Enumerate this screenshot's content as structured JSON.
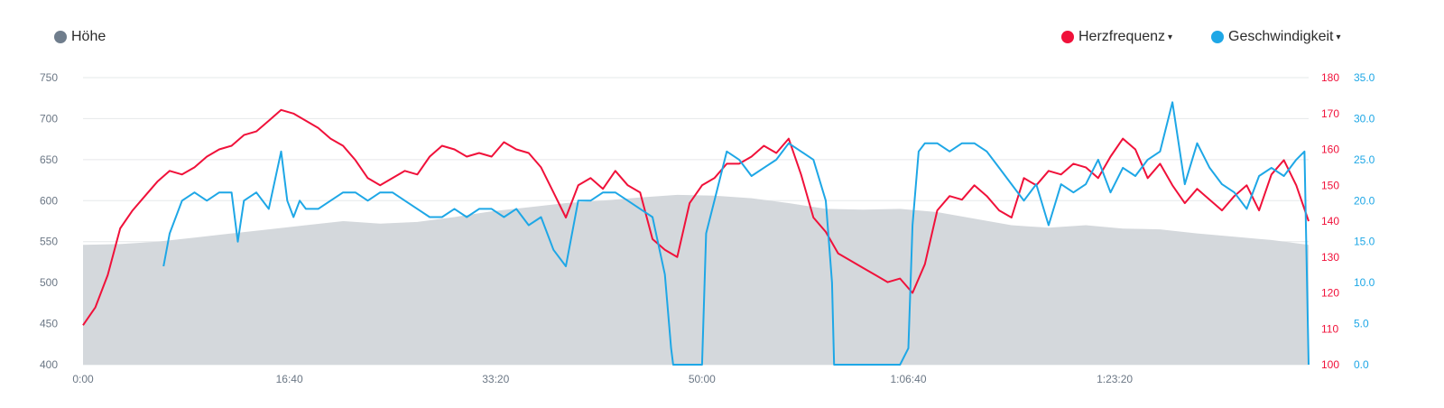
{
  "legend": {
    "elevation": {
      "label": "Höhe",
      "color": "#6f7d8c"
    },
    "heart_rate": {
      "label": "Herzfrequenz",
      "color": "#f0113a",
      "caret": "▾"
    },
    "speed": {
      "label": "Geschwindigkeit",
      "color": "#1ea7e6",
      "caret": "▾"
    }
  },
  "chart_data": {
    "type": "line",
    "x_unit": "elapsed time (h:mm:ss)",
    "xlim": [
      "0:00",
      "1:39:00"
    ],
    "x_ticks": [
      "0:00",
      "16:40",
      "33:20",
      "50:00",
      "1:06:40",
      "1:23:20"
    ],
    "grid": true,
    "legend_position": "top",
    "axes": {
      "left": {
        "ylim": [
          400,
          750
        ],
        "ticks": [
          "750",
          "700",
          "650",
          "600",
          "550",
          "500",
          "450",
          "400"
        ],
        "tick_color": "#6b7785"
      },
      "right_hr": {
        "ylim": [
          100,
          180
        ],
        "ticks": [
          "180",
          "170",
          "160",
          "150",
          "140",
          "130",
          "120",
          "110",
          "100"
        ],
        "tick_color": "#f0113a"
      },
      "right_speed": {
        "ylim": [
          0,
          35
        ],
        "ticks": [
          "35.0",
          "30.0",
          "25.0",
          "20.0",
          "15.0",
          "10.0",
          "5.0",
          "0.0"
        ],
        "tick_color": "#1ea7e6"
      }
    },
    "series": [
      {
        "name": "Höhe",
        "type": "area",
        "axis": "left",
        "color": "#d4d8dc",
        "x": [
          "0:00",
          "3:00",
          "6:00",
          "9:00",
          "12:00",
          "15:00",
          "18:00",
          "21:00",
          "24:00",
          "27:00",
          "30:00",
          "33:00",
          "36:00",
          "39:00",
          "42:00",
          "45:00",
          "48:00",
          "51:00",
          "54:00",
          "57:00",
          "60:00",
          "63:00",
          "66:00",
          "69:00",
          "72:00",
          "75:00",
          "78:00",
          "81:00",
          "84:00",
          "87:00",
          "90:00",
          "93:00",
          "96:00",
          "99:00"
        ],
        "values": [
          546,
          547,
          550,
          555,
          560,
          565,
          570,
          575,
          572,
          574,
          580,
          587,
          592,
          597,
          600,
          604,
          607,
          606,
          603,
          597,
          590,
          589,
          590,
          586,
          578,
          570,
          567,
          570,
          566,
          565,
          560,
          556,
          552,
          546
        ]
      },
      {
        "name": "Herzfrequenz",
        "type": "line",
        "axis": "right_hr",
        "color": "#f0113a",
        "x": [
          "0:00",
          "1:00",
          "2:00",
          "3:00",
          "4:00",
          "5:00",
          "6:00",
          "7:00",
          "8:00",
          "9:00",
          "10:00",
          "11:00",
          "12:00",
          "13:00",
          "14:00",
          "15:00",
          "16:00",
          "17:00",
          "18:00",
          "19:00",
          "20:00",
          "21:00",
          "22:00",
          "23:00",
          "24:00",
          "25:00",
          "26:00",
          "27:00",
          "28:00",
          "29:00",
          "30:00",
          "31:00",
          "32:00",
          "33:00",
          "34:00",
          "35:00",
          "36:00",
          "37:00",
          "38:00",
          "39:00",
          "40:00",
          "41:00",
          "42:00",
          "43:00",
          "44:00",
          "45:00",
          "46:00",
          "47:00",
          "48:00",
          "49:00",
          "50:00",
          "51:00",
          "52:00",
          "53:00",
          "54:00",
          "55:00",
          "56:00",
          "57:00",
          "58:00",
          "59:00",
          "60:00",
          "61:00",
          "62:00",
          "63:00",
          "64:00",
          "65:00",
          "66:00",
          "67:00",
          "68:00",
          "69:00",
          "70:00",
          "71:00",
          "72:00",
          "73:00",
          "74:00",
          "75:00",
          "76:00",
          "77:00",
          "78:00",
          "79:00",
          "80:00",
          "81:00",
          "82:00",
          "83:00",
          "84:00",
          "85:00",
          "86:00",
          "87:00",
          "88:00",
          "89:00",
          "90:00",
          "91:00",
          "92:00",
          "93:00",
          "94:00",
          "95:00",
          "96:00",
          "97:00",
          "98:00",
          "99:00"
        ],
        "values": [
          111,
          116,
          125,
          138,
          143,
          147,
          151,
          154,
          153,
          155,
          158,
          160,
          161,
          164,
          165,
          168,
          171,
          170,
          168,
          166,
          163,
          161,
          157,
          152,
          150,
          152,
          154,
          153,
          158,
          161,
          160,
          158,
          159,
          158,
          162,
          160,
          159,
          155,
          148,
          141,
          150,
          152,
          149,
          154,
          150,
          148,
          135,
          132,
          130,
          145,
          150,
          152,
          156,
          156,
          158,
          161,
          159,
          163,
          153,
          141,
          137,
          131,
          129,
          127,
          125,
          123,
          124,
          120,
          128,
          143,
          147,
          146,
          150,
          147,
          143,
          141,
          152,
          150,
          154,
          153,
          156,
          155,
          152,
          158,
          163,
          160,
          152,
          156,
          150,
          145,
          149,
          146,
          143,
          147,
          150,
          143,
          153,
          157,
          150,
          140
        ]
      },
      {
        "name": "Geschwindigkeit",
        "type": "line",
        "axis": "right_speed",
        "color": "#1ea7e6",
        "x": [
          "6:30",
          "7:00",
          "8:00",
          "9:00",
          "10:00",
          "11:00",
          "12:00",
          "12:30",
          "13:00",
          "14:00",
          "15:00",
          "16:00",
          "16:30",
          "17:00",
          "17:30",
          "18:00",
          "19:00",
          "20:00",
          "21:00",
          "22:00",
          "23:00",
          "24:00",
          "25:00",
          "26:00",
          "27:00",
          "28:00",
          "29:00",
          "30:00",
          "31:00",
          "32:00",
          "33:00",
          "34:00",
          "35:00",
          "36:00",
          "37:00",
          "38:00",
          "39:00",
          "40:00",
          "41:00",
          "42:00",
          "43:00",
          "44:00",
          "45:00",
          "46:00",
          "47:00",
          "47:30",
          "47:40",
          "50:00",
          "50:20",
          "51:00",
          "52:00",
          "53:00",
          "54:00",
          "55:00",
          "56:00",
          "57:00",
          "58:00",
          "59:00",
          "60:00",
          "60:30",
          "60:40",
          "66:00",
          "66:40",
          "67:00",
          "67:30",
          "68:00",
          "69:00",
          "70:00",
          "71:00",
          "72:00",
          "73:00",
          "74:00",
          "75:00",
          "76:00",
          "77:00",
          "78:00",
          "79:00",
          "80:00",
          "81:00",
          "82:00",
          "83:00",
          "84:00",
          "85:00",
          "86:00",
          "87:00",
          "88:00",
          "89:00",
          "90:00",
          "91:00",
          "92:00",
          "93:00",
          "94:00",
          "95:00",
          "96:00",
          "97:00",
          "98:00",
          "98:40",
          "99:00"
        ],
        "values": [
          12,
          16,
          20,
          21,
          20,
          21,
          21,
          15,
          20,
          21,
          19,
          26,
          20,
          18,
          20,
          19,
          19,
          20,
          21,
          21,
          20,
          21,
          21,
          20,
          19,
          18,
          18,
          19,
          18,
          19,
          19,
          18,
          19,
          17,
          18,
          14,
          12,
          20,
          20,
          21,
          21,
          20,
          19,
          18,
          11,
          2,
          0,
          0,
          16,
          20,
          26,
          25,
          23,
          24,
          25,
          27,
          26,
          25,
          20,
          10,
          0,
          0,
          2,
          17,
          26,
          27,
          27,
          26,
          27,
          27,
          26,
          24,
          22,
          20,
          22,
          17,
          22,
          21,
          22,
          25,
          21,
          24,
          23,
          25,
          26,
          32,
          22,
          27,
          24,
          22,
          21,
          19,
          23,
          24,
          23,
          25,
          26,
          0
        ]
      }
    ]
  }
}
